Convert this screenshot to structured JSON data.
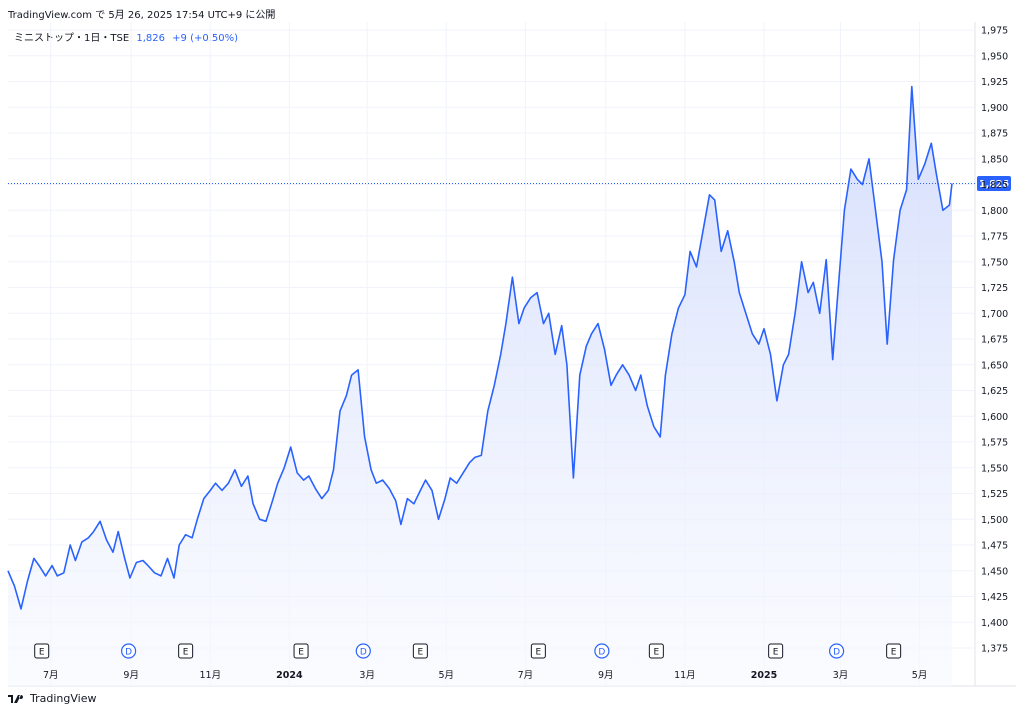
{
  "header": {
    "text": "TradingView.com で 5月 26, 2025 17:54 UTC+9 に公開"
  },
  "legend": {
    "symbol": "ミニストップ・1日・TSE",
    "last": "1,826",
    "change": "+9 (+0.50%)"
  },
  "footer": {
    "brand": "TradingView"
  },
  "colors": {
    "line": "#2962ff",
    "fill_top": "#dbe3fd",
    "fill_bottom": "#f6f8ff",
    "grid": "#f0f3fa",
    "text": "#131722"
  },
  "chart_data": {
    "type": "area",
    "title": "",
    "xlabel": "",
    "ylabel": "",
    "ylim": [
      1375,
      1975
    ],
    "y_ticks": [
      "1,375",
      "1,400",
      "1,425",
      "1,450",
      "1,475",
      "1,500",
      "1,525",
      "1,550",
      "1,575",
      "1,600",
      "1,625",
      "1,650",
      "1,675",
      "1,700",
      "1,725",
      "1,750",
      "1,775",
      "1,800",
      "1,825",
      "1,850",
      "1,875",
      "1,900",
      "1,925",
      "1,950",
      "1,975"
    ],
    "x_tick_labels": [
      "7月",
      "9月",
      "11月",
      "2024",
      "3月",
      "5月",
      "7月",
      "9月",
      "11月",
      "2025",
      "3月",
      "5月"
    ],
    "last_price_label": "1,826",
    "last_price": 1826,
    "event_markers": [
      {
        "type": "E",
        "date": "2023-06-24"
      },
      {
        "type": "D",
        "date": "2023-08-30"
      },
      {
        "type": "E",
        "date": "2023-10-13"
      },
      {
        "type": "E",
        "date": "2024-01-10"
      },
      {
        "type": "D",
        "date": "2024-02-27"
      },
      {
        "type": "E",
        "date": "2024-04-11"
      },
      {
        "type": "E",
        "date": "2024-07-11"
      },
      {
        "type": "D",
        "date": "2024-08-29"
      },
      {
        "type": "E",
        "date": "2024-10-10"
      },
      {
        "type": "E",
        "date": "2025-01-10"
      },
      {
        "type": "D",
        "date": "2025-02-26"
      },
      {
        "type": "E",
        "date": "2025-04-11"
      }
    ],
    "series": [
      {
        "values": [
          [
            "2023-05-29",
            1450
          ],
          [
            "2023-06-03",
            1435
          ],
          [
            "2023-06-08",
            1413
          ],
          [
            "2023-06-13",
            1440
          ],
          [
            "2023-06-18",
            1462
          ],
          [
            "2023-06-22",
            1455
          ],
          [
            "2023-06-27",
            1445
          ],
          [
            "2023-07-02",
            1455
          ],
          [
            "2023-07-06",
            1445
          ],
          [
            "2023-07-11",
            1448
          ],
          [
            "2023-07-16",
            1475
          ],
          [
            "2023-07-20",
            1460
          ],
          [
            "2023-07-25",
            1478
          ],
          [
            "2023-07-30",
            1482
          ],
          [
            "2023-08-03",
            1488
          ],
          [
            "2023-08-08",
            1498
          ],
          [
            "2023-08-13",
            1480
          ],
          [
            "2023-08-18",
            1468
          ],
          [
            "2023-08-22",
            1488
          ],
          [
            "2023-08-27",
            1462
          ],
          [
            "2023-08-31",
            1443
          ],
          [
            "2023-09-05",
            1458
          ],
          [
            "2023-09-10",
            1460
          ],
          [
            "2023-09-14",
            1455
          ],
          [
            "2023-09-19",
            1448
          ],
          [
            "2023-09-24",
            1445
          ],
          [
            "2023-09-29",
            1462
          ],
          [
            "2023-10-04",
            1443
          ],
          [
            "2023-10-08",
            1475
          ],
          [
            "2023-10-13",
            1485
          ],
          [
            "2023-10-18",
            1482
          ],
          [
            "2023-10-22",
            1500
          ],
          [
            "2023-10-27",
            1520
          ],
          [
            "2023-11-01",
            1528
          ],
          [
            "2023-11-05",
            1535
          ],
          [
            "2023-11-10",
            1528
          ],
          [
            "2023-11-15",
            1535
          ],
          [
            "2023-11-20",
            1548
          ],
          [
            "2023-11-25",
            1532
          ],
          [
            "2023-11-30",
            1542
          ],
          [
            "2023-12-04",
            1515
          ],
          [
            "2023-12-09",
            1500
          ],
          [
            "2023-12-14",
            1498
          ],
          [
            "2023-12-19",
            1518
          ],
          [
            "2023-12-23",
            1535
          ],
          [
            "2023-12-28",
            1550
          ],
          [
            "2024-01-02",
            1570
          ],
          [
            "2024-01-07",
            1545
          ],
          [
            "2024-01-12",
            1538
          ],
          [
            "2024-01-16",
            1542
          ],
          [
            "2024-01-21",
            1530
          ],
          [
            "2024-01-26",
            1520
          ],
          [
            "2024-01-31",
            1528
          ],
          [
            "2024-02-04",
            1548
          ],
          [
            "2024-02-09",
            1605
          ],
          [
            "2024-02-14",
            1620
          ],
          [
            "2024-02-18",
            1640
          ],
          [
            "2024-02-23",
            1645
          ],
          [
            "2024-02-28",
            1580
          ],
          [
            "2024-03-04",
            1548
          ],
          [
            "2024-03-08",
            1535
          ],
          [
            "2024-03-13",
            1538
          ],
          [
            "2024-03-18",
            1530
          ],
          [
            "2024-03-23",
            1518
          ],
          [
            "2024-03-27",
            1495
          ],
          [
            "2024-04-01",
            1520
          ],
          [
            "2024-04-06",
            1515
          ],
          [
            "2024-04-11",
            1528
          ],
          [
            "2024-04-15",
            1538
          ],
          [
            "2024-04-20",
            1528
          ],
          [
            "2024-04-25",
            1500
          ],
          [
            "2024-04-30",
            1520
          ],
          [
            "2024-05-04",
            1540
          ],
          [
            "2024-05-09",
            1535
          ],
          [
            "2024-05-14",
            1545
          ],
          [
            "2024-05-19",
            1555
          ],
          [
            "2024-05-23",
            1560
          ],
          [
            "2024-05-28",
            1562
          ],
          [
            "2024-06-02",
            1605
          ],
          [
            "2024-06-07",
            1630
          ],
          [
            "2024-06-12",
            1660
          ],
          [
            "2024-06-16",
            1690
          ],
          [
            "2024-06-21",
            1735
          ],
          [
            "2024-06-26",
            1690
          ],
          [
            "2024-06-30",
            1705
          ],
          [
            "2024-07-05",
            1715
          ],
          [
            "2024-07-10",
            1720
          ],
          [
            "2024-07-15",
            1690
          ],
          [
            "2024-07-19",
            1700
          ],
          [
            "2024-07-24",
            1660
          ],
          [
            "2024-07-29",
            1688
          ],
          [
            "2024-08-02",
            1650
          ],
          [
            "2024-08-07",
            1540
          ],
          [
            "2024-08-12",
            1640
          ],
          [
            "2024-08-17",
            1668
          ],
          [
            "2024-08-21",
            1680
          ],
          [
            "2024-08-26",
            1690
          ],
          [
            "2024-08-31",
            1665
          ],
          [
            "2024-09-05",
            1630
          ],
          [
            "2024-09-09",
            1640
          ],
          [
            "2024-09-14",
            1650
          ],
          [
            "2024-09-19",
            1640
          ],
          [
            "2024-09-24",
            1625
          ],
          [
            "2024-09-28",
            1640
          ],
          [
            "2024-10-03",
            1610
          ],
          [
            "2024-10-08",
            1590
          ],
          [
            "2024-10-13",
            1580
          ],
          [
            "2024-10-17",
            1640
          ],
          [
            "2024-10-22",
            1680
          ],
          [
            "2024-10-27",
            1705
          ],
          [
            "2024-11-01",
            1718
          ],
          [
            "2024-11-05",
            1760
          ],
          [
            "2024-11-10",
            1745
          ],
          [
            "2024-11-15",
            1780
          ],
          [
            "2024-11-20",
            1815
          ],
          [
            "2024-11-24",
            1810
          ],
          [
            "2024-11-29",
            1760
          ],
          [
            "2024-12-04",
            1780
          ],
          [
            "2024-12-09",
            1750
          ],
          [
            "2024-12-13",
            1720
          ],
          [
            "2024-12-18",
            1700
          ],
          [
            "2024-12-23",
            1680
          ],
          [
            "2024-12-28",
            1670
          ],
          [
            "2025-01-01",
            1685
          ],
          [
            "2025-01-06",
            1660
          ],
          [
            "2025-01-11",
            1615
          ],
          [
            "2025-01-16",
            1650
          ],
          [
            "2025-01-20",
            1660
          ],
          [
            "2025-01-25",
            1700
          ],
          [
            "2025-01-30",
            1750
          ],
          [
            "2025-02-04",
            1720
          ],
          [
            "2025-02-08",
            1730
          ],
          [
            "2025-02-13",
            1700
          ],
          [
            "2025-02-18",
            1752
          ],
          [
            "2025-02-23",
            1655
          ],
          [
            "2025-02-27",
            1720
          ],
          [
            "2025-03-04",
            1800
          ],
          [
            "2025-03-09",
            1840
          ],
          [
            "2025-03-14",
            1830
          ],
          [
            "2025-03-18",
            1825
          ],
          [
            "2025-03-23",
            1850
          ],
          [
            "2025-03-28",
            1800
          ],
          [
            "2025-04-02",
            1750
          ],
          [
            "2025-04-06",
            1670
          ],
          [
            "2025-04-11",
            1752
          ],
          [
            "2025-04-16",
            1800
          ],
          [
            "2025-04-21",
            1820
          ],
          [
            "2025-04-25",
            1920
          ],
          [
            "2025-04-30",
            1830
          ],
          [
            "2025-05-05",
            1845
          ],
          [
            "2025-05-10",
            1865
          ],
          [
            "2025-05-14",
            1835
          ],
          [
            "2025-05-19",
            1800
          ],
          [
            "2025-05-24",
            1805
          ],
          [
            "2025-05-26",
            1826
          ]
        ]
      }
    ]
  }
}
